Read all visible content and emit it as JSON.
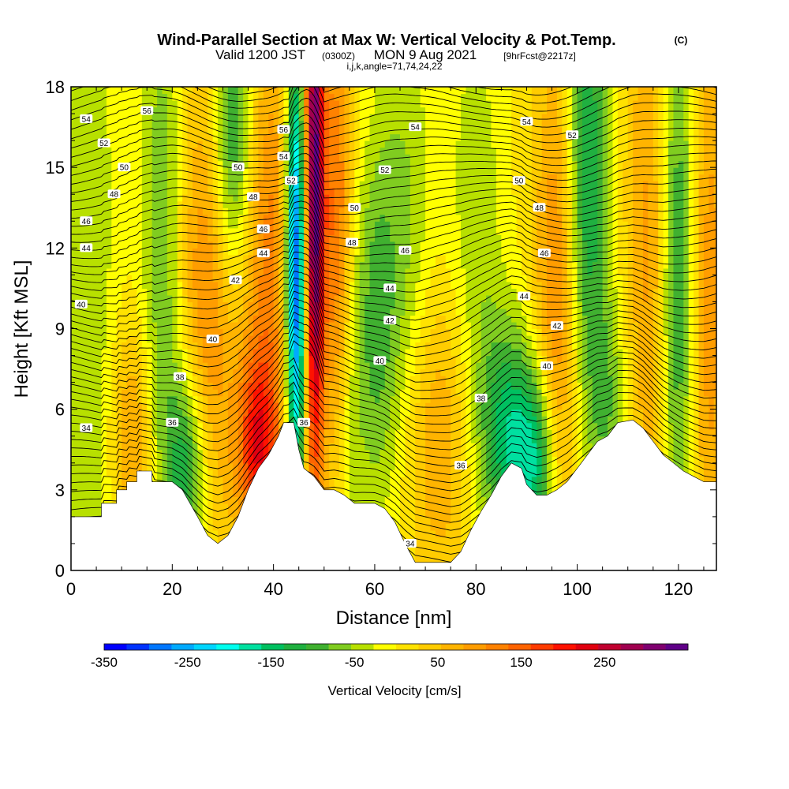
{
  "header": {
    "title_main": "Wind-Parallel Section at Max W: Vertical Velocity & Pot.Temp.",
    "title_mark": "(C)",
    "valid_prefix": "Valid 1200 JST",
    "valid_utc": "(0300Z)",
    "valid_date": "MON 9 Aug 2021",
    "forecast": "[9hrFcst@2217z]",
    "grid_info": "i,j,k,angle=71,74,24,22"
  },
  "chart_data": {
    "type": "heatmap",
    "xlabel": "Distance [nm]",
    "ylabel": "Height [Kft MSL]",
    "xlim": [
      0,
      127.5
    ],
    "ylim": [
      0,
      18
    ],
    "x_ticks": [
      "0",
      "20",
      "40",
      "60",
      "80",
      "100",
      "120"
    ],
    "y_ticks": [
      "0",
      "3",
      "6",
      "9",
      "12",
      "15",
      "18"
    ],
    "colorbar": {
      "label": "Vertical Velocity [cm/s]",
      "ticks": [
        "-350",
        "-250",
        "-150",
        "-50",
        "50",
        "150",
        "250"
      ],
      "range": [
        -350,
        350
      ],
      "colors": [
        "#0000ff",
        "#0033ff",
        "#0077ff",
        "#00aaff",
        "#00d5ff",
        "#00ffee",
        "#00e0a0",
        "#00c060",
        "#20b040",
        "#40b030",
        "#80cc20",
        "#b8e000",
        "#ffff00",
        "#ffe200",
        "#ffcc00",
        "#ffb400",
        "#ff9d00",
        "#ff8200",
        "#ff6400",
        "#ff3c00",
        "#ff1200",
        "#e00010",
        "#c00030",
        "#a00050",
        "#800070",
        "#600088"
      ]
    },
    "terrain_kft": [
      [
        0,
        2
      ],
      [
        6,
        2
      ],
      [
        6,
        2.5
      ],
      [
        9,
        2.5
      ],
      [
        9,
        3
      ],
      [
        11,
        3
      ],
      [
        11,
        3.3
      ],
      [
        13,
        3.3
      ],
      [
        13,
        3.7
      ],
      [
        16,
        3.7
      ],
      [
        16,
        3.3
      ],
      [
        20,
        3.3
      ],
      [
        22,
        3
      ],
      [
        25,
        2
      ],
      [
        27,
        1.3
      ],
      [
        29,
        1
      ],
      [
        31,
        1.3
      ],
      [
        33,
        2
      ],
      [
        35,
        3
      ],
      [
        37,
        3.8
      ],
      [
        39,
        4.3
      ],
      [
        41,
        5
      ],
      [
        42,
        5.5
      ],
      [
        43,
        5.5
      ],
      [
        44,
        5.5
      ],
      [
        45,
        4.5
      ],
      [
        46,
        3.8
      ],
      [
        48,
        3.5
      ],
      [
        50,
        3
      ],
      [
        52,
        3
      ],
      [
        54,
        2.8
      ],
      [
        56,
        2.5
      ],
      [
        58,
        2.5
      ],
      [
        60,
        2.5
      ],
      [
        62,
        2.3
      ],
      [
        64,
        1.8
      ],
      [
        66,
        1
      ],
      [
        68,
        0.3
      ],
      [
        72,
        0.3
      ],
      [
        75,
        0.3
      ],
      [
        77,
        0.7
      ],
      [
        79,
        1.5
      ],
      [
        81,
        2.2
      ],
      [
        83,
        2.8
      ],
      [
        85,
        3.5
      ],
      [
        87,
        4
      ],
      [
        89,
        3.8
      ],
      [
        90,
        3.2
      ],
      [
        92,
        2.8
      ],
      [
        94,
        2.8
      ],
      [
        96,
        3
      ],
      [
        98,
        3.3
      ],
      [
        100,
        3.8
      ],
      [
        102,
        4.3
      ],
      [
        104,
        4.8
      ],
      [
        106,
        5
      ],
      [
        108,
        5.5
      ],
      [
        111,
        5.6
      ],
      [
        113,
        5.3
      ],
      [
        115,
        4.8
      ],
      [
        117,
        4.3
      ],
      [
        119,
        4
      ],
      [
        121,
        3.7
      ],
      [
        123,
        3.5
      ],
      [
        125,
        3.3
      ],
      [
        127.5,
        3.3
      ]
    ],
    "velocity_features": [
      {
        "x": 3,
        "w": -60,
        "width": 5,
        "z_peak": 10,
        "z_spread": 14
      },
      {
        "x": 12,
        "w": 90,
        "width": 3,
        "z_peak": 5,
        "z_spread": 3
      },
      {
        "x": 18,
        "w": -90,
        "width": 3,
        "z_peak": 12,
        "z_spread": 8
      },
      {
        "x": 23,
        "w": -150,
        "width": 3,
        "z_peak": 3.5,
        "z_spread": 3
      },
      {
        "x": 27,
        "w": 110,
        "width": 4,
        "z_peak": 10,
        "z_spread": 6
      },
      {
        "x": 32,
        "w": -150,
        "width": 3,
        "z_peak": 16,
        "z_spread": 4
      },
      {
        "x": 37,
        "w": 170,
        "width": 3,
        "z_peak": 4.5,
        "z_spread": 2.5
      },
      {
        "x": 39,
        "w": 110,
        "width": 4,
        "z_peak": 12,
        "z_spread": 6
      },
      {
        "x": 44.5,
        "w": -350,
        "width": 1.5,
        "z_peak": 11,
        "z_spread": 6
      },
      {
        "x": 48,
        "w": 320,
        "width": 1.4,
        "z_peak": 14,
        "z_spread": 8
      },
      {
        "x": 53,
        "w": 150,
        "width": 2.5,
        "z_peak": 13,
        "z_spread": 6
      },
      {
        "x": 55,
        "w": -70,
        "width": 2,
        "z_peak": 9,
        "z_spread": 7
      },
      {
        "x": 60,
        "w": -90,
        "width": 3,
        "z_peak": 9,
        "z_spread": 5
      },
      {
        "x": 66,
        "w": -70,
        "width": 4,
        "z_peak": 12,
        "z_spread": 7
      },
      {
        "x": 72,
        "w": 80,
        "width": 5,
        "z_peak": 5,
        "z_spread": 4
      },
      {
        "x": 80,
        "w": -60,
        "width": 4,
        "z_peak": 13,
        "z_spread": 6
      },
      {
        "x": 86,
        "w": -150,
        "width": 4,
        "z_peak": 5,
        "z_spread": 3
      },
      {
        "x": 92,
        "w": -150,
        "width": 3,
        "z_peak": 4,
        "z_spread": 2.5
      },
      {
        "x": 96,
        "w": 110,
        "width": 3,
        "z_peak": 10,
        "z_spread": 7
      },
      {
        "x": 102,
        "w": -150,
        "width": 3,
        "z_peak": 15,
        "z_spread": 6
      },
      {
        "x": 106,
        "w": -80,
        "width": 3,
        "z_peak": 6,
        "z_spread": 3
      },
      {
        "x": 114,
        "w": 80,
        "width": 3,
        "z_peak": 12,
        "z_spread": 8
      },
      {
        "x": 120,
        "w": -130,
        "width": 2.5,
        "z_peak": 11,
        "z_spread": 8
      },
      {
        "x": 126,
        "w": 90,
        "width": 3,
        "z_peak": 10,
        "z_spread": 8
      }
    ],
    "isentropes_C": [
      34,
      36,
      38,
      40,
      42,
      44,
      46,
      48,
      50,
      52,
      54,
      56
    ],
    "isentrope_labels": [
      {
        "text": "54",
        "x": 3,
        "z": 16.8
      },
      {
        "text": "56",
        "x": 15,
        "z": 17.1
      },
      {
        "text": "52",
        "x": 6.5,
        "z": 15.9
      },
      {
        "text": "50",
        "x": 10.5,
        "z": 15
      },
      {
        "text": "48",
        "x": 8.5,
        "z": 14
      },
      {
        "text": "46",
        "x": 3,
        "z": 13
      },
      {
        "text": "44",
        "x": 3,
        "z": 12
      },
      {
        "text": "40",
        "x": 2,
        "z": 9.9
      },
      {
        "text": "34",
        "x": 3,
        "z": 5.3
      },
      {
        "text": "50",
        "x": 33,
        "z": 15
      },
      {
        "text": "48",
        "x": 36,
        "z": 13.9
      },
      {
        "text": "46",
        "x": 38,
        "z": 12.7
      },
      {
        "text": "44",
        "x": 38,
        "z": 11.8
      },
      {
        "text": "42",
        "x": 32.5,
        "z": 10.8
      },
      {
        "text": "40",
        "x": 28,
        "z": 8.6
      },
      {
        "text": "38",
        "x": 21.5,
        "z": 7.2
      },
      {
        "text": "36",
        "x": 20,
        "z": 5.5
      },
      {
        "text": "56",
        "x": 42,
        "z": 16.4
      },
      {
        "text": "54",
        "x": 42,
        "z": 15.4
      },
      {
        "text": "52",
        "x": 43.5,
        "z": 14.5
      },
      {
        "text": "36",
        "x": 46,
        "z": 5.5
      },
      {
        "text": "50",
        "x": 56,
        "z": 13.5
      },
      {
        "text": "48",
        "x": 55.5,
        "z": 12.2
      },
      {
        "text": "52",
        "x": 62,
        "z": 14.9
      },
      {
        "text": "46",
        "x": 66,
        "z": 11.9
      },
      {
        "text": "44",
        "x": 63,
        "z": 10.5
      },
      {
        "text": "42",
        "x": 63,
        "z": 9.3
      },
      {
        "text": "40",
        "x": 61,
        "z": 7.8
      },
      {
        "text": "54",
        "x": 68,
        "z": 16.5
      },
      {
        "text": "38",
        "x": 81,
        "z": 6.4
      },
      {
        "text": "36",
        "x": 77,
        "z": 3.9
      },
      {
        "text": "34",
        "x": 67,
        "z": 1
      },
      {
        "text": "54",
        "x": 90,
        "z": 16.7
      },
      {
        "text": "52",
        "x": 99,
        "z": 16.2
      },
      {
        "text": "50",
        "x": 88.5,
        "z": 14.5
      },
      {
        "text": "48",
        "x": 92.5,
        "z": 13.5
      },
      {
        "text": "46",
        "x": 93.5,
        "z": 11.8
      },
      {
        "text": "44",
        "x": 89.5,
        "z": 10.2
      },
      {
        "text": "42",
        "x": 96,
        "z": 9.1
      },
      {
        "text": "40",
        "x": 94,
        "z": 7.6
      }
    ]
  }
}
